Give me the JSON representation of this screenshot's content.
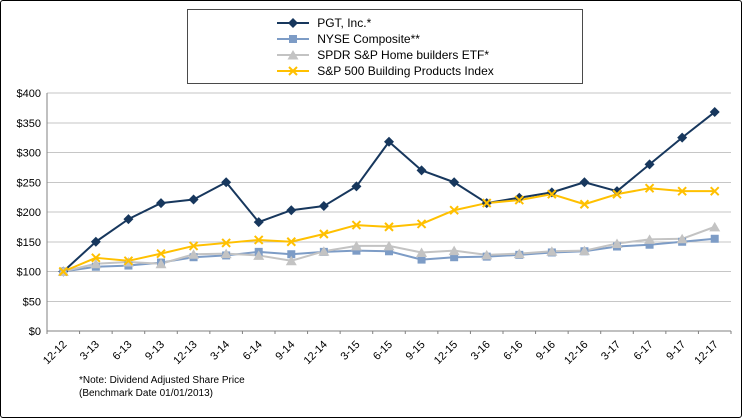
{
  "chart_data": {
    "type": "line",
    "x": [
      "12-12",
      "3-13",
      "6-13",
      "9-13",
      "12-13",
      "3-14",
      "6-14",
      "9-14",
      "12-14",
      "3-15",
      "6-15",
      "9-15",
      "12-15",
      "3-16",
      "6-16",
      "9-16",
      "12-16",
      "3-17",
      "6-17",
      "9-17",
      "12-17"
    ],
    "series": [
      {
        "name": "PGT, Inc.*",
        "color": "#17375D",
        "marker": "diamond",
        "values": [
          100,
          150,
          188,
          215,
          221,
          250,
          183,
          203,
          210,
          243,
          318,
          270,
          250,
          215,
          224,
          233,
          250,
          235,
          280,
          325,
          368
        ]
      },
      {
        "name": "NYSE Composite**",
        "color": "#7D9CC6",
        "marker": "square",
        "values": [
          100,
          108,
          110,
          115,
          124,
          127,
          133,
          129,
          133,
          135,
          134,
          120,
          124,
          125,
          128,
          132,
          134,
          142,
          145,
          150,
          155
        ]
      },
      {
        "name": "SPDR S&P Home builders ETF*",
        "color": "#C3C3C3",
        "marker": "triangle",
        "values": [
          100,
          113,
          116,
          113,
          129,
          130,
          127,
          118,
          134,
          143,
          143,
          132,
          135,
          128,
          130,
          134,
          135,
          147,
          154,
          155,
          175
        ]
      },
      {
        "name": "S&P 500 Building Products Index",
        "color": "#FFC000",
        "marker": "x",
        "values": [
          100,
          123,
          118,
          130,
          143,
          148,
          153,
          150,
          163,
          178,
          175,
          180,
          203,
          215,
          220,
          230,
          213,
          230,
          240,
          235,
          235
        ]
      }
    ],
    "title": "",
    "xlabel": "",
    "ylabel": "",
    "ylim": [
      0,
      400
    ],
    "ytick_step": 50,
    "ytick_prefix": "$",
    "grid": true,
    "legend_position": "top-center"
  },
  "footnote": {
    "line1": "*Note: Dividend Adjusted Share Price",
    "line2": "(Benchmark Date 01/01/2013)"
  }
}
